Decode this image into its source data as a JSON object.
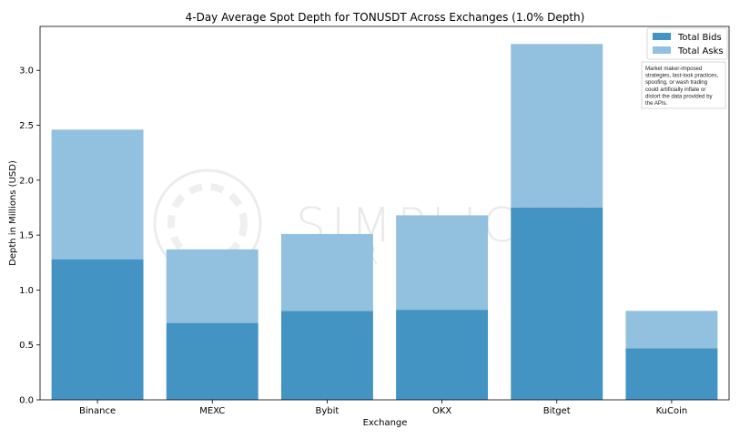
{
  "chart_data": {
    "type": "bar",
    "stacked": true,
    "title": "4-Day Average Spot Depth for TONUSDT Across Exchanges (1.0% Depth)",
    "xlabel": "Exchange",
    "ylabel": "Depth in Millions (USD)",
    "categories": [
      "Binance",
      "MEXC",
      "Bybit",
      "OKX",
      "Bitget",
      "KuCoin"
    ],
    "series": [
      {
        "name": "Total Bids",
        "color": "#4393c3",
        "values": [
          1.28,
          0.7,
          0.81,
          0.82,
          1.75,
          0.47
        ]
      },
      {
        "name": "Total Asks",
        "color": "#92c0df",
        "values": [
          1.18,
          0.67,
          0.7,
          0.86,
          1.49,
          0.34
        ]
      }
    ],
    "ylim": [
      0,
      3.4
    ],
    "yticks": [
      0.0,
      0.5,
      1.0,
      1.5,
      2.0,
      2.5,
      3.0
    ],
    "ytick_labels": [
      "0.0",
      "0.5",
      "1.0",
      "1.5",
      "2.0",
      "2.5",
      "3.0"
    ],
    "legend": "top-right",
    "grid": false
  },
  "annotation": {
    "lines": [
      "Market maker-imposed",
      "strategies, last-look practices,",
      "spoofing, or wash trading",
      "could artificially inflate or",
      "distort the data provided by",
      "the APIs."
    ]
  },
  "watermark": {
    "text": "SIMPLICITY",
    "text2": "R"
  }
}
